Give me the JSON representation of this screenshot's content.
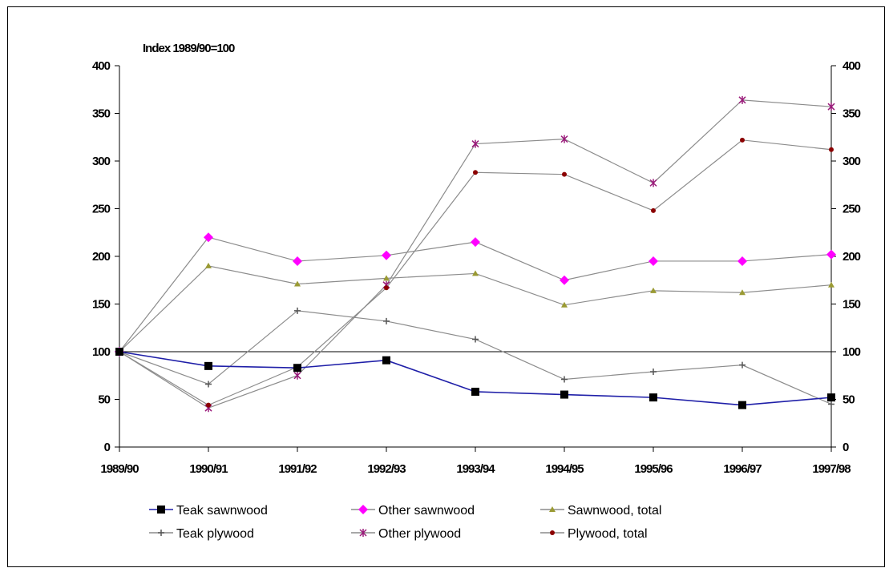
{
  "chart_data": {
    "type": "line",
    "title": "",
    "index_note": "Index 1989/90=100",
    "xlabel": "",
    "ylabel": "",
    "categories": [
      "1989/90",
      "1990/91",
      "1991/92",
      "1992/93",
      "1993/94",
      "1994/95",
      "1995/96",
      "1996/97",
      "1997/98"
    ],
    "ylim": [
      0,
      400
    ],
    "yticks": [
      "0",
      "50",
      "100",
      "150",
      "200",
      "250",
      "300",
      "350",
      "400"
    ],
    "grid": false,
    "reference_line": 100,
    "legend_position": "bottom",
    "series": [
      {
        "name": "Teak sawnwood",
        "color": "#1f1fa8",
        "marker": "square",
        "values": [
          100,
          85,
          83,
          91,
          58,
          55,
          52,
          44,
          52
        ]
      },
      {
        "name": "Other sawnwood",
        "color": "#8c8c8c",
        "marker": "diamond",
        "values": [
          100,
          220,
          195,
          201,
          215,
          175,
          195,
          195,
          202
        ]
      },
      {
        "name": "Sawnwood, total",
        "color": "#8c8c8c",
        "marker": "triangle",
        "values": [
          100,
          190,
          171,
          177,
          182,
          149,
          164,
          162,
          170
        ]
      },
      {
        "name": "Teak plywood",
        "color": "#8c8c8c",
        "marker": "plus",
        "values": [
          100,
          66,
          143,
          132,
          113,
          71,
          79,
          86,
          45
        ]
      },
      {
        "name": "Other plywood",
        "color": "#8c8c8c",
        "marker": "star",
        "values": [
          100,
          41,
          75,
          170,
          318,
          323,
          277,
          364,
          357
        ]
      },
      {
        "name": "Plywood, total",
        "color": "#8c8c8c",
        "marker": "dot",
        "values": [
          100,
          44,
          84,
          167,
          288,
          286,
          248,
          322,
          312
        ]
      }
    ],
    "marker_colors": {
      "square": "#000000",
      "diamond": "#ff00ff",
      "triangle": "#9a9a33",
      "plus": "#555555",
      "star": "#9a1a7a",
      "dot": "#8b0000"
    }
  }
}
